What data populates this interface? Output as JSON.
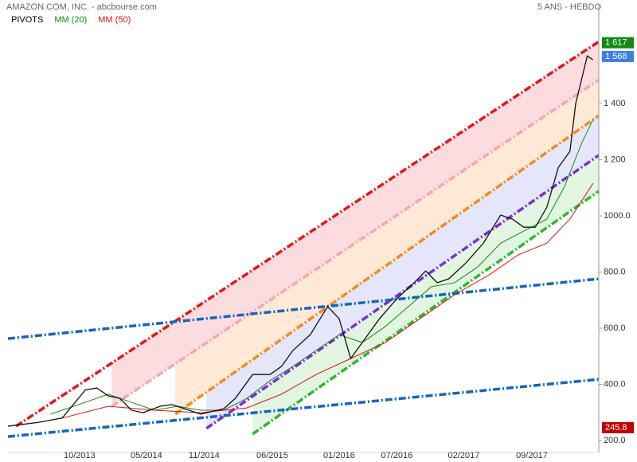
{
  "chart_data": {
    "type": "line",
    "title": "AMAZON.COM, INC. - abcbourse.com",
    "subtitle": "5 ANS - HEBDO",
    "legend": [
      {
        "label": "PIVOTS",
        "color": "#000000"
      },
      {
        "label": "MM (20)",
        "color": "#138a13"
      },
      {
        "label": "MM (50)",
        "color": "#e01010"
      }
    ],
    "xlim": [
      2013.13,
      2018.25
    ],
    "xticks": [
      {
        "value": 2013.75,
        "label": "10/2013"
      },
      {
        "value": 2014.33,
        "label": "05/2014"
      },
      {
        "value": 2014.83,
        "label": "11/2014"
      },
      {
        "value": 2015.42,
        "label": "06/2015"
      },
      {
        "value": 2016.0,
        "label": "01/2016"
      },
      {
        "value": 2016.5,
        "label": "07/2016"
      },
      {
        "value": 2017.08,
        "label": "02/2017"
      },
      {
        "value": 2017.67,
        "label": "09/2017"
      }
    ],
    "ylim": [
      166,
      1755
    ],
    "yticks": [
      {
        "value": 200,
        "label": "200.0"
      },
      {
        "value": 400,
        "label": "400.0"
      },
      {
        "value": 600,
        "label": "600.0"
      },
      {
        "value": 800,
        "label": "800.0"
      },
      {
        "value": 1000,
        "label": "1000.0"
      },
      {
        "value": 1200,
        "label": "1 200"
      },
      {
        "value": 1400,
        "label": "1 400"
      }
    ],
    "price": {
      "color": "#111111",
      "x": [
        2013.13,
        2013.4,
        2013.6,
        2013.8,
        2013.9,
        2014.0,
        2014.1,
        2014.2,
        2014.3,
        2014.45,
        2014.55,
        2014.7,
        2014.8,
        2015.0,
        2015.1,
        2015.25,
        2015.4,
        2015.5,
        2015.6,
        2015.75,
        2015.9,
        2016.0,
        2016.1,
        2016.2,
        2016.35,
        2016.5,
        2016.65,
        2016.75,
        2016.85,
        2016.95,
        2017.1,
        2017.25,
        2017.4,
        2017.5,
        2017.6,
        2017.7,
        2017.8,
        2017.9,
        2018.0,
        2018.05,
        2018.1,
        2018.15,
        2018.2
      ],
      "values": [
        251,
        265,
        280,
        380,
        387,
        359,
        350,
        308,
        299,
        322,
        328,
        308,
        294,
        313,
        350,
        435,
        435,
        464,
        521,
        577,
        677,
        634,
        492,
        549,
        634,
        705,
        762,
        804,
        762,
        776,
        833,
        903,
        1003,
        989,
        960,
        960,
        1031,
        1173,
        1230,
        1400,
        1485,
        1570,
        1556
      ]
    },
    "series": [
      {
        "name": "MM (20)",
        "color": "#138a13",
        "x": [
          2013.5,
          2013.8,
          2014.0,
          2014.2,
          2014.4,
          2014.6,
          2014.8,
          2015.0,
          2015.2,
          2015.4,
          2015.6,
          2015.8,
          2016.0,
          2016.2,
          2016.4,
          2016.6,
          2016.8,
          2017.0,
          2017.2,
          2017.4,
          2017.6,
          2017.8,
          2017.95,
          2018.1,
          2018.2
        ],
        "values": [
          294,
          336,
          365,
          336,
          308,
          322,
          308,
          308,
          350,
          413,
          464,
          521,
          577,
          549,
          606,
          677,
          748,
          762,
          818,
          903,
          946,
          989,
          1102,
          1258,
          1343
        ]
      },
      {
        "name": "MM (50)",
        "color": "#e01010",
        "x": [
          2013.6,
          2014.0,
          2014.4,
          2014.8,
          2015.2,
          2015.5,
          2015.8,
          2016.1,
          2016.4,
          2016.7,
          2017.0,
          2017.3,
          2017.55,
          2017.8,
          2018.0,
          2018.2
        ],
        "values": [
          280,
          322,
          308,
          299,
          316,
          365,
          435,
          492,
          549,
          634,
          719,
          790,
          861,
          903,
          989,
          1116
        ]
      }
    ],
    "pivots": [
      {
        "color": "#e8141a",
        "x": [
          2013.2,
          2018.25
        ],
        "values": [
          251,
          1621
        ]
      },
      {
        "color": "#f5a6b4",
        "x": [
          2014.03,
          2018.25
        ],
        "values": [
          322,
          1485
        ]
      },
      {
        "color": "#f58a1c",
        "x": [
          2014.58,
          2018.25
        ],
        "values": [
          294,
          1357
        ]
      },
      {
        "color": "#7b2fd6",
        "x": [
          2014.85,
          2018.25
        ],
        "values": [
          243,
          1216
        ]
      },
      {
        "color": "#2eb82e",
        "x": [
          2015.25,
          2018.25
        ],
        "values": [
          223,
          1088
        ]
      },
      {
        "color": "#1565c0",
        "x": [
          2013.13,
          2018.25
        ],
        "values": [
          563,
          776
        ]
      },
      {
        "color": "#1565c0",
        "x": [
          2013.13,
          2018.25
        ],
        "values": [
          214,
          418
        ]
      }
    ],
    "price_labels": [
      {
        "value": 1617,
        "label": "1 617",
        "color": "#138a13"
      },
      {
        "value": 1568,
        "label": "1 568",
        "color": "#3d7fe0"
      },
      {
        "value": 245.8,
        "label": "245.8",
        "color": "#c00000"
      }
    ]
  }
}
